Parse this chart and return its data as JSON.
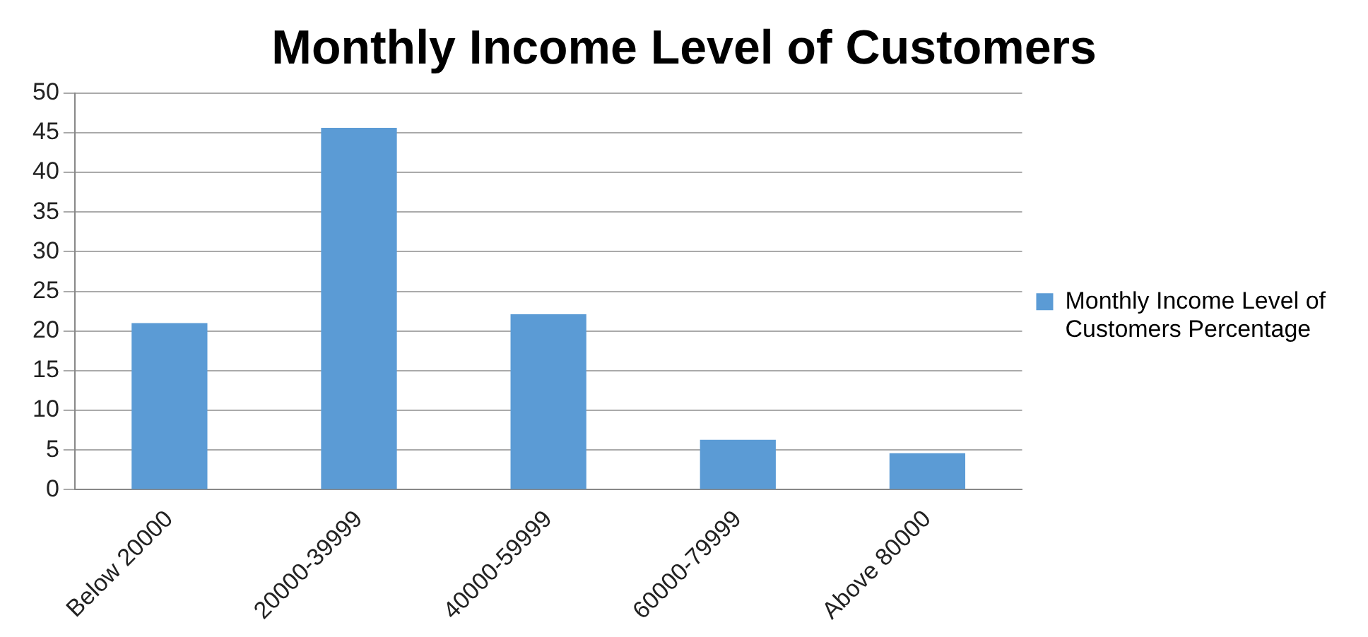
{
  "chart_data": {
    "type": "bar",
    "title": "Monthly Income Level of Customers",
    "categories": [
      "Below 20000",
      "20000-39999",
      "40000-59999",
      "60000-79999",
      "Above 80000"
    ],
    "series": [
      {
        "name": "Monthly Income Level of Customers Percentage",
        "color": "#5b9bd5",
        "values": [
          21,
          45.6,
          22.1,
          6.3,
          4.6
        ]
      }
    ],
    "ylim": [
      0,
      50
    ],
    "yticks": [
      0,
      5,
      10,
      15,
      20,
      25,
      30,
      35,
      40,
      45,
      50
    ],
    "grid": "y",
    "legend": "right"
  }
}
